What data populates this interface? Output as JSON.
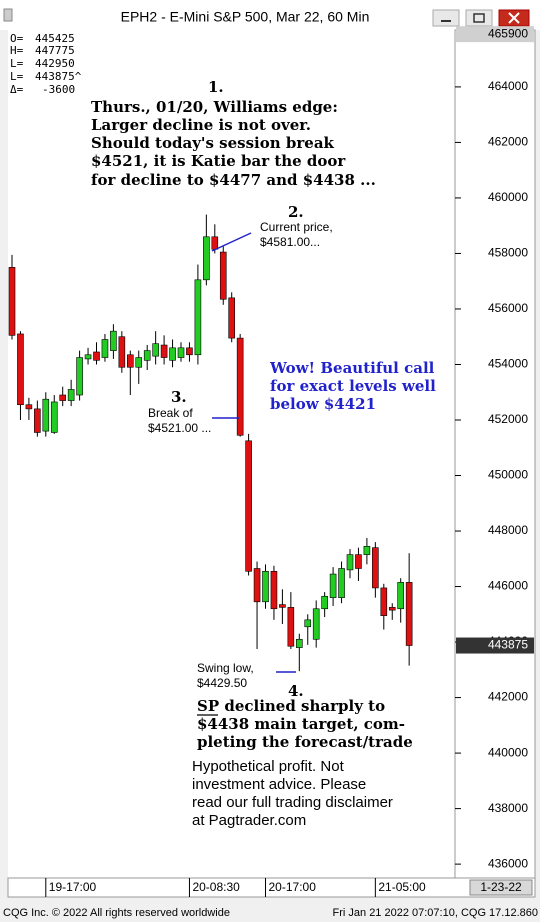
{
  "chart_data": {
    "type": "candlestick",
    "title": "EPH2 - E-Mini S&P 500, Mar 22, 60 Min",
    "categories": [
      null,
      null,
      null,
      null,
      "19-17:00",
      null,
      null,
      null,
      null,
      null,
      null,
      null,
      null,
      null,
      null,
      null,
      null,
      null,
      null,
      null,
      null,
      "20-08:30",
      null,
      null,
      null,
      null,
      null,
      null,
      null,
      null,
      "20-17:00",
      null,
      null,
      null,
      null,
      null,
      null,
      null,
      null,
      null,
      null,
      null,
      null,
      "21-05:00",
      null,
      null,
      null,
      null
    ],
    "open": [
      457500,
      455100,
      452550,
      452400,
      451600,
      451550,
      452900,
      452700,
      452900,
      454200,
      454450,
      454250,
      454500,
      455000,
      454350,
      453900,
      454150,
      454300,
      454700,
      454150,
      454250,
      454600,
      454350,
      457050,
      458600,
      458050,
      456400,
      454950,
      451250,
      446650,
      445450,
      446550,
      445350,
      445250,
      443800,
      444550,
      444100,
      445200,
      445600,
      445600,
      446600,
      447150,
      447150,
      447400,
      445950,
      445250,
      445200,
      446150
    ],
    "high": [
      457950,
      455200,
      452800,
      452700,
      453000,
      452900,
      453200,
      453450,
      454500,
      454600,
      454800,
      455100,
      455450,
      455200,
      454500,
      454500,
      454700,
      455200,
      455050,
      454900,
      454800,
      454800,
      457600,
      459400,
      459050,
      458250,
      456600,
      455100,
      451500,
      446900,
      446800,
      446750,
      445900,
      445800,
      444300,
      445000,
      445500,
      445800,
      446700,
      446900,
      447350,
      447400,
      447750,
      447600,
      446100,
      445400,
      446300,
      447200
    ],
    "low": [
      454900,
      452000,
      452000,
      451400,
      451400,
      451500,
      452500,
      452500,
      452700,
      454000,
      454000,
      454100,
      454200,
      453700,
      452900,
      453300,
      453800,
      454000,
      454000,
      453900,
      454100,
      454100,
      454000,
      456850,
      458000,
      456150,
      454800,
      451400,
      446400,
      443750,
      445200,
      444800,
      444650,
      443750,
      442950,
      443900,
      443800,
      444900,
      445300,
      445400,
      446300,
      446200,
      446800,
      445600,
      444450,
      444800,
      444700,
      443150
    ],
    "close": [
      455050,
      452550,
      452400,
      451550,
      452750,
      452650,
      452700,
      453100,
      454250,
      454350,
      454150,
      454900,
      455200,
      453900,
      453900,
      454250,
      454500,
      454750,
      454250,
      454600,
      454600,
      454350,
      457050,
      458600,
      458150,
      456350,
      454950,
      451450,
      446550,
      445450,
      446550,
      445200,
      445250,
      443850,
      444100,
      444800,
      445200,
      445650,
      446450,
      446650,
      447150,
      446650,
      447450,
      445950,
      444950,
      445150,
      446150,
      443875
    ],
    "up_color": "#22cc22",
    "down_color": "#dd1111",
    "ylim": [
      435500,
      466050
    ],
    "yticks": [
      436000,
      438000,
      440000,
      442000,
      444000,
      446000,
      448000,
      450000,
      452000,
      454000,
      456000,
      458000,
      460000,
      462000,
      464000
    ],
    "price_markers": [
      465900,
      443875
    ],
    "date_label": "1-23-22",
    "info": [
      {
        "label": "O=",
        "value": "445425"
      },
      {
        "label": "H=",
        "value": "447775"
      },
      {
        "label": "L=",
        "value": "442950"
      },
      {
        "label": "L=",
        "value": "443875^"
      },
      {
        "label": "Δ=",
        "value": "-3600"
      }
    ],
    "annotations": [
      {
        "number": "1.",
        "lines": [
          "Thurs., 01/20, Williams edge:",
          "Larger decline is not over.",
          "Should today's session break",
          "$4521, it is Katie bar the door",
          "for decline to $4477 and $4438 ..."
        ]
      },
      {
        "number": "2.",
        "lines": [
          "Current price,",
          "$4581.00..."
        ]
      },
      {
        "lines": [
          "Wow! Beautiful call",
          "for exact levels well",
          "below $4421"
        ]
      },
      {
        "number": "3.",
        "lines": [
          "Break of",
          "$4521.00 ..."
        ]
      },
      {
        "lines": [
          "Swing low,",
          "$4429.50"
        ]
      },
      {
        "number": "4.",
        "lines": [
          "SP declined sharply to",
          "$4438 main target, com-",
          "pleting the forecast/trade"
        ]
      },
      {
        "lines": [
          "Hypothetical profit. Not",
          "investment advice. Please",
          "read our full trading disclaimer",
          "at Pagtrader.com"
        ]
      }
    ],
    "footer_left": "CQG Inc. © 2022 All rights reserved worldwide",
    "footer_right": "Fri Jan 21 2022 07:07:10, CQG 17.12.860"
  }
}
